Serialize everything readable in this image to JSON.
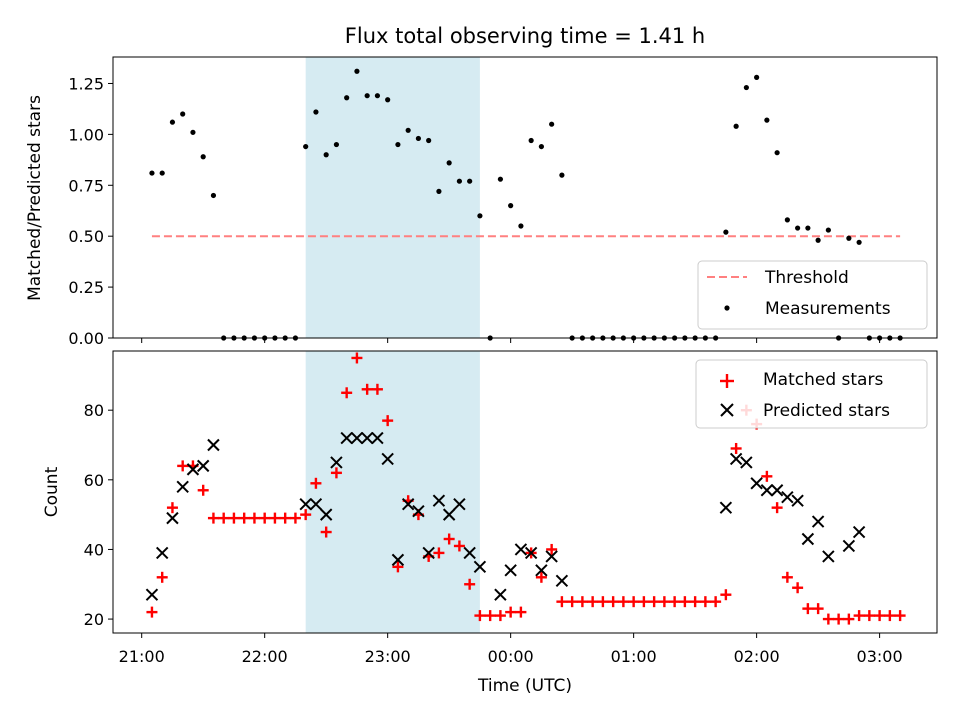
{
  "colors": {
    "shade": "#add8e6",
    "threshold": "#ff8080",
    "matched": "#ff0000",
    "predicted": "#000000",
    "measurement": "#000000"
  },
  "chart_data": [
    {
      "type": "scatter",
      "title": "Flux total observing time = 1.41 h",
      "ylabel": "Matched/Predicted stars",
      "xlabel": "",
      "xlim": [
        "20:46",
        "03:28"
      ],
      "ylim": [
        0,
        1.38
      ],
      "yticks": [
        "0.00",
        "0.25",
        "0.50",
        "0.75",
        "1.00",
        "1.25"
      ],
      "legend_position": "lower-right",
      "shaded_span": {
        "start": "22:20",
        "end": "23:45"
      },
      "threshold": {
        "name": "Threshold",
        "value": 0.5,
        "x_start": "21:05",
        "x_end": "03:10"
      },
      "series": [
        {
          "name": "Measurements",
          "points": [
            [
              "21:05",
              0.81
            ],
            [
              "21:10",
              0.81
            ],
            [
              "21:15",
              1.06
            ],
            [
              "21:20",
              1.1
            ],
            [
              "21:25",
              1.01
            ],
            [
              "21:30",
              0.89
            ],
            [
              "21:35",
              0.7
            ],
            [
              "21:40",
              0.0
            ],
            [
              "21:45",
              0.0
            ],
            [
              "21:50",
              0.0
            ],
            [
              "21:55",
              0.0
            ],
            [
              "22:00",
              0.0
            ],
            [
              "22:05",
              0.0
            ],
            [
              "22:10",
              0.0
            ],
            [
              "22:15",
              0.0
            ],
            [
              "22:20",
              0.94
            ],
            [
              "22:25",
              1.11
            ],
            [
              "22:30",
              0.9
            ],
            [
              "22:35",
              0.95
            ],
            [
              "22:40",
              1.18
            ],
            [
              "22:45",
              1.31
            ],
            [
              "22:50",
              1.19
            ],
            [
              "22:55",
              1.19
            ],
            [
              "23:00",
              1.17
            ],
            [
              "23:05",
              0.95
            ],
            [
              "23:10",
              1.02
            ],
            [
              "23:15",
              0.98
            ],
            [
              "23:20",
              0.97
            ],
            [
              "23:25",
              0.72
            ],
            [
              "23:30",
              0.86
            ],
            [
              "23:35",
              0.77
            ],
            [
              "23:40",
              0.77
            ],
            [
              "23:45",
              0.6
            ],
            [
              "23:50",
              0.0
            ],
            [
              "23:55",
              0.78
            ],
            [
              "00:00",
              0.65
            ],
            [
              "00:05",
              0.55
            ],
            [
              "00:10",
              0.97
            ],
            [
              "00:15",
              0.94
            ],
            [
              "00:20",
              1.05
            ],
            [
              "00:25",
              0.8
            ],
            [
              "00:30",
              0.0
            ],
            [
              "00:35",
              0.0
            ],
            [
              "00:40",
              0.0
            ],
            [
              "00:45",
              0.0
            ],
            [
              "00:50",
              0.0
            ],
            [
              "00:55",
              0.0
            ],
            [
              "01:00",
              0.0
            ],
            [
              "01:05",
              0.0
            ],
            [
              "01:10",
              0.0
            ],
            [
              "01:15",
              0.0
            ],
            [
              "01:20",
              0.0
            ],
            [
              "01:25",
              0.0
            ],
            [
              "01:30",
              0.0
            ],
            [
              "01:35",
              0.0
            ],
            [
              "01:40",
              0.0
            ],
            [
              "01:45",
              0.52
            ],
            [
              "01:50",
              1.04
            ],
            [
              "01:55",
              1.23
            ],
            [
              "02:00",
              1.28
            ],
            [
              "02:05",
              1.07
            ],
            [
              "02:10",
              0.91
            ],
            [
              "02:15",
              0.58
            ],
            [
              "02:20",
              0.54
            ],
            [
              "02:25",
              0.54
            ],
            [
              "02:30",
              0.48
            ],
            [
              "02:35",
              0.53
            ],
            [
              "02:40",
              0.0
            ],
            [
              "02:45",
              0.49
            ],
            [
              "02:50",
              0.47
            ],
            [
              "02:55",
              0.0
            ],
            [
              "03:00",
              0.0
            ],
            [
              "03:05",
              0.0
            ],
            [
              "03:10",
              0.0
            ]
          ]
        }
      ]
    },
    {
      "type": "scatter",
      "title": "",
      "ylabel": "Count",
      "xlabel": "Time (UTC)",
      "xlim": [
        "20:46",
        "03:28"
      ],
      "ylim": [
        16,
        97
      ],
      "yticks": [
        "20",
        "40",
        "60",
        "80"
      ],
      "xticks": [
        "21:00",
        "22:00",
        "23:00",
        "00:00",
        "01:00",
        "02:00",
        "03:00"
      ],
      "legend_position": "upper-right",
      "shaded_span": {
        "start": "22:20",
        "end": "23:45"
      },
      "series": [
        {
          "name": "Matched stars",
          "marker": "plus",
          "points": [
            [
              "21:05",
              22
            ],
            [
              "21:10",
              32
            ],
            [
              "21:15",
              52
            ],
            [
              "21:20",
              64
            ],
            [
              "21:25",
              64
            ],
            [
              "21:30",
              57
            ],
            [
              "21:35",
              49
            ],
            [
              "21:40",
              49
            ],
            [
              "21:45",
              49
            ],
            [
              "21:50",
              49
            ],
            [
              "21:55",
              49
            ],
            [
              "22:00",
              49
            ],
            [
              "22:05",
              49
            ],
            [
              "22:10",
              49
            ],
            [
              "22:15",
              49
            ],
            [
              "22:20",
              50
            ],
            [
              "22:25",
              59
            ],
            [
              "22:30",
              45
            ],
            [
              "22:35",
              62
            ],
            [
              "22:40",
              85
            ],
            [
              "22:45",
              95
            ],
            [
              "22:50",
              86
            ],
            [
              "22:55",
              86
            ],
            [
              "23:00",
              77
            ],
            [
              "23:05",
              35
            ],
            [
              "23:10",
              54
            ],
            [
              "23:15",
              50
            ],
            [
              "23:20",
              38
            ],
            [
              "23:25",
              39
            ],
            [
              "23:30",
              43
            ],
            [
              "23:35",
              41
            ],
            [
              "23:40",
              30
            ],
            [
              "23:45",
              21
            ],
            [
              "23:50",
              21
            ],
            [
              "23:55",
              21
            ],
            [
              "00:00",
              22
            ],
            [
              "00:05",
              22
            ],
            [
              "00:10",
              39
            ],
            [
              "00:15",
              32
            ],
            [
              "00:20",
              40
            ],
            [
              "00:25",
              25
            ],
            [
              "00:30",
              25
            ],
            [
              "00:35",
              25
            ],
            [
              "00:40",
              25
            ],
            [
              "00:45",
              25
            ],
            [
              "00:50",
              25
            ],
            [
              "00:55",
              25
            ],
            [
              "01:00",
              25
            ],
            [
              "01:05",
              25
            ],
            [
              "01:10",
              25
            ],
            [
              "01:15",
              25
            ],
            [
              "01:20",
              25
            ],
            [
              "01:25",
              25
            ],
            [
              "01:30",
              25
            ],
            [
              "01:35",
              25
            ],
            [
              "01:40",
              25
            ],
            [
              "01:45",
              27
            ],
            [
              "01:50",
              69
            ],
            [
              "01:55",
              80
            ],
            [
              "02:00",
              76
            ],
            [
              "02:05",
              61
            ],
            [
              "02:10",
              52
            ],
            [
              "02:15",
              32
            ],
            [
              "02:20",
              29
            ],
            [
              "02:25",
              23
            ],
            [
              "02:30",
              23
            ],
            [
              "02:35",
              20
            ],
            [
              "02:40",
              20
            ],
            [
              "02:45",
              20
            ],
            [
              "02:50",
              21
            ],
            [
              "02:55",
              21
            ],
            [
              "03:00",
              21
            ],
            [
              "03:05",
              21
            ],
            [
              "03:10",
              21
            ]
          ]
        },
        {
          "name": "Predicted stars",
          "marker": "x",
          "points": [
            [
              "21:05",
              27
            ],
            [
              "21:10",
              39
            ],
            [
              "21:15",
              49
            ],
            [
              "21:20",
              58
            ],
            [
              "21:25",
              63
            ],
            [
              "21:30",
              64
            ],
            [
              "21:35",
              70
            ],
            [
              "22:20",
              53
            ],
            [
              "22:25",
              53
            ],
            [
              "22:30",
              50
            ],
            [
              "22:35",
              65
            ],
            [
              "22:40",
              72
            ],
            [
              "22:45",
              72
            ],
            [
              "22:50",
              72
            ],
            [
              "22:55",
              72
            ],
            [
              "23:00",
              66
            ],
            [
              "23:05",
              37
            ],
            [
              "23:10",
              53
            ],
            [
              "23:15",
              51
            ],
            [
              "23:20",
              39
            ],
            [
              "23:25",
              54
            ],
            [
              "23:30",
              50
            ],
            [
              "23:35",
              53
            ],
            [
              "23:40",
              39
            ],
            [
              "23:45",
              35
            ],
            [
              "23:55",
              27
            ],
            [
              "00:00",
              34
            ],
            [
              "00:05",
              40
            ],
            [
              "00:10",
              39
            ],
            [
              "00:15",
              34
            ],
            [
              "00:20",
              38
            ],
            [
              "00:25",
              31
            ],
            [
              "01:45",
              52
            ],
            [
              "01:50",
              66
            ],
            [
              "01:55",
              65
            ],
            [
              "02:00",
              59
            ],
            [
              "02:05",
              57
            ],
            [
              "02:10",
              57
            ],
            [
              "02:15",
              55
            ],
            [
              "02:20",
              54
            ],
            [
              "02:25",
              43
            ],
            [
              "02:30",
              48
            ],
            [
              "02:35",
              38
            ],
            [
              "02:45",
              41
            ],
            [
              "02:50",
              45
            ]
          ]
        }
      ]
    }
  ]
}
